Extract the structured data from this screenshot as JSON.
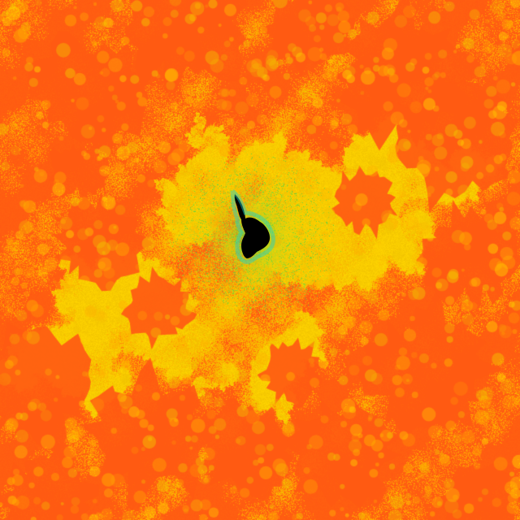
{
  "image": {
    "subject": "fractal-escape-time-render",
    "palette": {
      "basin_orange": "#ff5a12",
      "deep_orange": "#ff6a10",
      "amber": "#ffb000",
      "gold": "#f2c400",
      "yellow": "#ffd400",
      "lime": "#b6d820",
      "green": "#39d64a",
      "cyan": "#20d3c8",
      "core_black": "#000000"
    }
  }
}
